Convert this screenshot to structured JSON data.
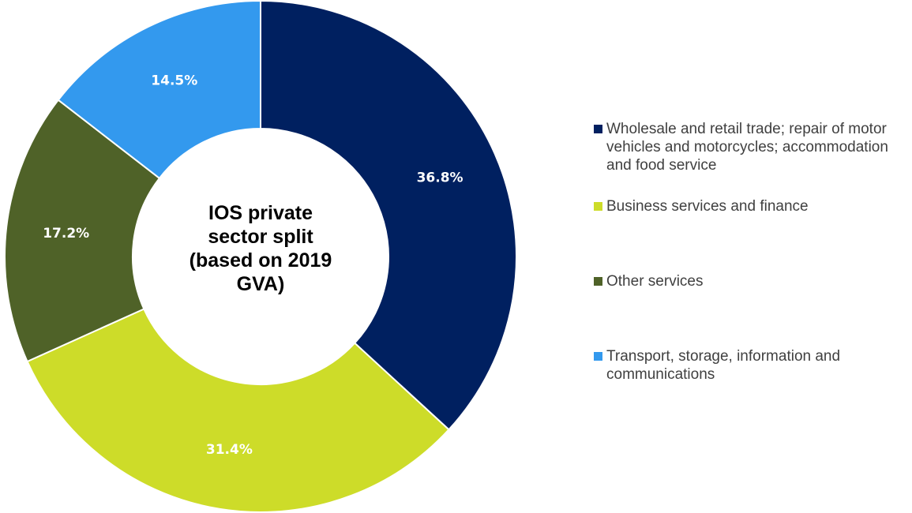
{
  "chart_data": {
    "type": "donut",
    "title": "IOS private sector split (based on 2019 GVA)",
    "categories": [
      "Wholesale and retail trade; repair of motor vehicles and motorcycles; accommodation and food service",
      "Business services and finance",
      "Other services",
      "Transport, storage, information and communications"
    ],
    "values": [
      36.8,
      31.4,
      17.2,
      14.5
    ],
    "value_labels": [
      "36.8%",
      "31.4%",
      "17.2%",
      "14.5%"
    ],
    "colors": [
      "#002060",
      "#cddc29",
      "#4f6228",
      "#3399ee"
    ],
    "legend": "right"
  }
}
